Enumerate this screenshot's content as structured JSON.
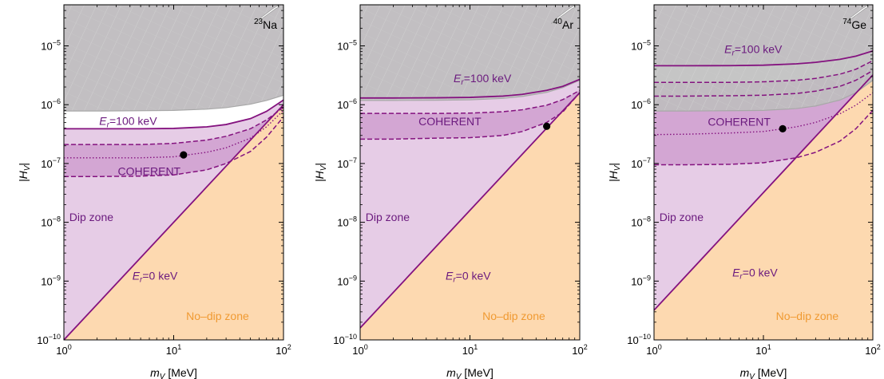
{
  "chart_data": [
    {
      "type": "area",
      "nucleus": {
        "mass_number": "23",
        "symbol": "Na"
      },
      "xlabel": {
        "main": "m",
        "sub": "V",
        "unit": " [MeV]"
      },
      "ylabel": {
        "main": "|H",
        "sub": "V",
        "close": "|"
      },
      "x_scale": "log",
      "y_scale": "log",
      "xlim": [
        1,
        100
      ],
      "ylim": [
        1e-10,
        5e-05
      ],
      "grid": false,
      "x_ticks": [
        {
          "value": 1,
          "base": "10",
          "exp": "0"
        },
        {
          "value": 10,
          "base": "10",
          "exp": "1"
        },
        {
          "value": 100,
          "base": "10",
          "exp": "2"
        }
      ],
      "y_ticks": [
        {
          "value": 1e-10,
          "base": "10",
          "exp": "−10"
        },
        {
          "value": 1e-09,
          "base": "10",
          "exp": "−9"
        },
        {
          "value": 1e-08,
          "base": "10",
          "exp": "−8"
        },
        {
          "value": 1e-07,
          "base": "10",
          "exp": "−7"
        },
        {
          "value": 1e-06,
          "base": "10",
          "exp": "−6"
        },
        {
          "value": 1e-05,
          "base": "10",
          "exp": "−5"
        }
      ],
      "curves": {
        "er0_line": {
          "x": [
            1,
            100
          ],
          "y": [
            1e-10,
            1e-06
          ]
        },
        "er100_line": {
          "x": [
            1,
            2,
            5,
            10,
            20,
            30,
            50,
            70,
            100
          ],
          "y": [
            3.9e-07,
            3.9e-07,
            3.9e-07,
            3.95e-07,
            4.2e-07,
            4.6e-07,
            5.8e-07,
            7.7e-07,
            1.2e-06
          ]
        },
        "excluded_boundary": {
          "x": [
            1,
            2,
            5,
            10,
            20,
            30,
            50,
            70,
            100
          ],
          "y": [
            7.8e-07,
            7.8e-07,
            7.9e-07,
            8e-07,
            8.4e-07,
            8.9e-07,
            1.02e-06,
            1.18e-06,
            1.45e-06
          ]
        },
        "coherent_upper": {
          "x": [
            1,
            2,
            5,
            10,
            20,
            30,
            50,
            70,
            100
          ],
          "y": [
            2.1e-07,
            2.1e-07,
            2.1e-07,
            2.2e-07,
            2.5e-07,
            2.9e-07,
            3.9e-07,
            5.5e-07,
            9e-07
          ]
        },
        "coherent_best": {
          "x": [
            1,
            2,
            5,
            10,
            20,
            30,
            50,
            70,
            100
          ],
          "y": [
            1.25e-07,
            1.25e-07,
            1.25e-07,
            1.3e-07,
            1.55e-07,
            1.85e-07,
            2.7e-07,
            4.2e-07,
            8e-07
          ]
        },
        "coherent_lower": {
          "x": [
            1,
            2,
            5,
            10,
            20,
            30,
            50,
            70,
            100
          ],
          "y": [
            6e-08,
            6e-08,
            6.1e-08,
            6.4e-08,
            7.8e-08,
            1e-07,
            1.6e-07,
            2.8e-07,
            6.2e-07
          ]
        },
        "top_right_island": {
          "x": [
            55,
            70,
            85,
            92,
            90,
            80,
            62,
            55
          ],
          "y": [
            2.4e-05,
            3.3e-05,
            4.3e-05,
            4.6e-05,
            4.9e-05,
            4.3e-05,
            3e-05,
            2.4e-05
          ]
        }
      },
      "best_fit_point": {
        "x": 12.3,
        "y": 1.4e-07
      },
      "labels": {
        "er_high": {
          "text": "=100 keV",
          "x": 2.1,
          "y": 4.55e-07,
          "color": "#6b1a7e"
        },
        "er_zero": {
          "text": "=0 keV",
          "x": 4.2,
          "y": 1.05e-09,
          "color": "#6b1a7e"
        },
        "coherent": {
          "text": "COHERENT",
          "x": 3.1,
          "y": 6.3e-08,
          "color": "#6b1a7e"
        },
        "dip": {
          "text": "Dip zone",
          "x": 1.12,
          "y": 1.05e-08,
          "color": "#6b1a7e"
        },
        "nodip": {
          "text": "No–dip zone",
          "x": 13,
          "y": 2.2e-10,
          "color": "#f09a32"
        }
      }
    },
    {
      "type": "area",
      "nucleus": {
        "mass_number": "40",
        "symbol": "Ar"
      },
      "xlabel": {
        "main": "m",
        "sub": "V",
        "unit": " [MeV]"
      },
      "ylabel": {
        "main": "|H",
        "sub": "V",
        "close": "|"
      },
      "x_scale": "log",
      "y_scale": "log",
      "xlim": [
        1,
        100
      ],
      "ylim": [
        1e-10,
        5e-05
      ],
      "grid": false,
      "x_ticks": [
        {
          "value": 1,
          "base": "10",
          "exp": "0"
        },
        {
          "value": 10,
          "base": "10",
          "exp": "1"
        },
        {
          "value": 100,
          "base": "10",
          "exp": "2"
        }
      ],
      "y_ticks": [
        {
          "value": 1e-10,
          "base": "10",
          "exp": "−10"
        },
        {
          "value": 1e-09,
          "base": "10",
          "exp": "−9"
        },
        {
          "value": 1e-08,
          "base": "10",
          "exp": "−8"
        },
        {
          "value": 1e-07,
          "base": "10",
          "exp": "−7"
        },
        {
          "value": 1e-06,
          "base": "10",
          "exp": "−6"
        },
        {
          "value": 1e-05,
          "base": "10",
          "exp": "−5"
        }
      ],
      "curves": {
        "er0_line": {
          "x": [
            1,
            100
          ],
          "y": [
            1.6e-10,
            1.6e-06
          ]
        },
        "er100_line": {
          "x": [
            1,
            2,
            5,
            10,
            20,
            30,
            50,
            70,
            100
          ],
          "y": [
            1.3e-06,
            1.3e-06,
            1.31e-06,
            1.33e-06,
            1.4e-06,
            1.5e-06,
            1.75e-06,
            2.05e-06,
            2.7e-06
          ]
        },
        "excluded_boundary": {
          "x": [
            1,
            2,
            5,
            10,
            20,
            30,
            50,
            70,
            100
          ],
          "y": [
            1.18e-06,
            1.18e-06,
            1.19e-06,
            1.21e-06,
            1.28e-06,
            1.38e-06,
            1.62e-06,
            1.95e-06,
            2.6e-06
          ]
        },
        "coherent_upper": {
          "x": [
            1,
            2,
            5,
            10,
            20,
            30,
            50,
            70,
            100
          ],
          "y": [
            7.1e-07,
            7.1e-07,
            7.1e-07,
            7.2e-07,
            7.6e-07,
            8.2e-07,
            9.8e-07,
            1.22e-06,
            1.75e-06
          ]
        },
        "coherent_lower": {
          "x": [
            1,
            2,
            5,
            10,
            20,
            30,
            50,
            70,
            100
          ],
          "y": [
            2.6e-07,
            2.6e-07,
            2.7e-07,
            2.75e-07,
            3e-07,
            3.5e-07,
            5e-07,
            7.5e-07,
            1.6e-06
          ]
        },
        "top_right_island": {
          "x": [
            55,
            70,
            85,
            92,
            90,
            80,
            62,
            55
          ],
          "y": [
            2.4e-05,
            3.3e-05,
            4.3e-05,
            4.6e-05,
            4.9e-05,
            4.3e-05,
            3e-05,
            2.4e-05
          ]
        }
      },
      "best_fit_point": {
        "x": 50,
        "y": 4.3e-07
      },
      "labels": {
        "er_high": {
          "text": "=100 keV",
          "x": 7.1,
          "y": 2.4e-06,
          "color": "#6b1a7e"
        },
        "er_zero": {
          "text": "=0 keV",
          "x": 6,
          "y": 1.05e-09,
          "color": "#6b1a7e"
        },
        "coherent": {
          "text": "COHERENT",
          "x": 3.4,
          "y": 4.5e-07,
          "color": "#6b1a7e"
        },
        "dip": {
          "text": "Dip zone",
          "x": 1.12,
          "y": 1.05e-08,
          "color": "#6b1a7e"
        },
        "nodip": {
          "text": "No–dip zone",
          "x": 13,
          "y": 2.2e-10,
          "color": "#f09a32"
        }
      }
    },
    {
      "type": "area",
      "nucleus": {
        "mass_number": "74",
        "symbol": "Ge"
      },
      "xlabel": {
        "main": "m",
        "sub": "V",
        "unit": " [MeV]"
      },
      "ylabel": {
        "main": "|H",
        "sub": "V",
        "close": "|"
      },
      "x_scale": "log",
      "y_scale": "log",
      "xlim": [
        1,
        100
      ],
      "ylim": [
        1e-10,
        5e-05
      ],
      "grid": false,
      "x_ticks": [
        {
          "value": 1,
          "base": "10",
          "exp": "0"
        },
        {
          "value": 10,
          "base": "10",
          "exp": "1"
        },
        {
          "value": 100,
          "base": "10",
          "exp": "2"
        }
      ],
      "y_ticks": [
        {
          "value": 1e-10,
          "base": "10",
          "exp": "−10"
        },
        {
          "value": 1e-09,
          "base": "10",
          "exp": "−9"
        },
        {
          "value": 1e-08,
          "base": "10",
          "exp": "−8"
        },
        {
          "value": 1e-07,
          "base": "10",
          "exp": "−7"
        },
        {
          "value": 1e-06,
          "base": "10",
          "exp": "−6"
        },
        {
          "value": 1e-05,
          "base": "10",
          "exp": "−5"
        }
      ],
      "curves": {
        "er0_line": {
          "x": [
            1,
            100
          ],
          "y": [
            3.2e-10,
            3.2e-06
          ]
        },
        "er100_line": {
          "x": [
            1,
            2,
            5,
            10,
            20,
            30,
            50,
            70,
            100
          ],
          "y": [
            4.6e-06,
            4.6e-06,
            4.62e-06,
            4.7e-06,
            4.95e-06,
            5.25e-06,
            5.9e-06,
            6.7e-06,
            8.2e-06
          ]
        },
        "excluded_boundary": {
          "x": [
            1,
            2,
            5,
            10,
            20,
            30,
            50,
            70,
            100
          ],
          "y": [
            7.8e-07,
            7.8e-07,
            7.9e-07,
            8e-07,
            8.6e-07,
            9.5e-07,
            1.2e-06,
            1.6e-06,
            2.6e-06
          ]
        },
        "coherent_upper": {
          "x": [
            1,
            2,
            5,
            10,
            20,
            30,
            50,
            70,
            100
          ],
          "y": [
            2.4e-06,
            2.4e-06,
            2.4e-06,
            2.45e-06,
            2.6e-06,
            2.8e-06,
            3.3e-06,
            4e-06,
            5.6e-06
          ]
        },
        "coherent_mid": {
          "x": [
            1,
            2,
            5,
            10,
            20,
            30,
            50,
            70,
            100
          ],
          "y": [
            1.4e-06,
            1.4e-06,
            1.42e-06,
            1.45e-06,
            1.55e-06,
            1.7e-06,
            2.05e-06,
            2.6e-06,
            3.8e-06
          ]
        },
        "coherent_best": {
          "x": [
            1,
            2,
            5,
            10,
            20,
            30,
            50,
            70,
            100
          ],
          "y": [
            3.1e-07,
            3.15e-07,
            3.3e-07,
            3.5e-07,
            4.2e-07,
            5e-07,
            7e-07,
            9.8e-07,
            1.6e-06
          ]
        },
        "coherent_lower": {
          "x": [
            1,
            2,
            5,
            10,
            20,
            30,
            50,
            70,
            100
          ],
          "y": [
            9.5e-08,
            9.5e-08,
            9.7e-08,
            1.03e-07,
            1.25e-07,
            1.55e-07,
            2.4e-07,
            3.9e-07,
            8e-07
          ]
        },
        "top_right_island": {
          "x": [
            55,
            70,
            85,
            92,
            90,
            80,
            62,
            55
          ],
          "y": [
            2.4e-05,
            3.3e-05,
            4.3e-05,
            4.6e-05,
            4.9e-05,
            4.3e-05,
            3e-05,
            2.4e-05
          ]
        }
      },
      "best_fit_point": {
        "x": 15,
        "y": 3.9e-07
      },
      "labels": {
        "er_high": {
          "text": "=100 keV",
          "x": 4.4,
          "y": 7.5e-06,
          "color": "#6b1a7e"
        },
        "er_zero": {
          "text": "=0 keV",
          "x": 5.2,
          "y": 1.2e-09,
          "color": "#6b1a7e"
        },
        "coherent": {
          "text": "COHERENT",
          "x": 3.1,
          "y": 4.4e-07,
          "color": "#6b1a7e"
        },
        "dip": {
          "text": "Dip zone",
          "x": 1.12,
          "y": 1.05e-08,
          "color": "#6b1a7e"
        },
        "nodip": {
          "text": "No–dip zone",
          "x": 13,
          "y": 2.2e-10,
          "color": "#f09a32"
        }
      }
    }
  ],
  "colors": {
    "dip_fill": "#e6cce6",
    "coherent_fill": "#cf9fcf",
    "nodip_fill": "#fdd9b0",
    "excluded_fill": "#bdbdbd",
    "excluded_edge": "#a8a8a8",
    "curve": "#84127f",
    "point": "#000000",
    "axis": "#000000"
  }
}
